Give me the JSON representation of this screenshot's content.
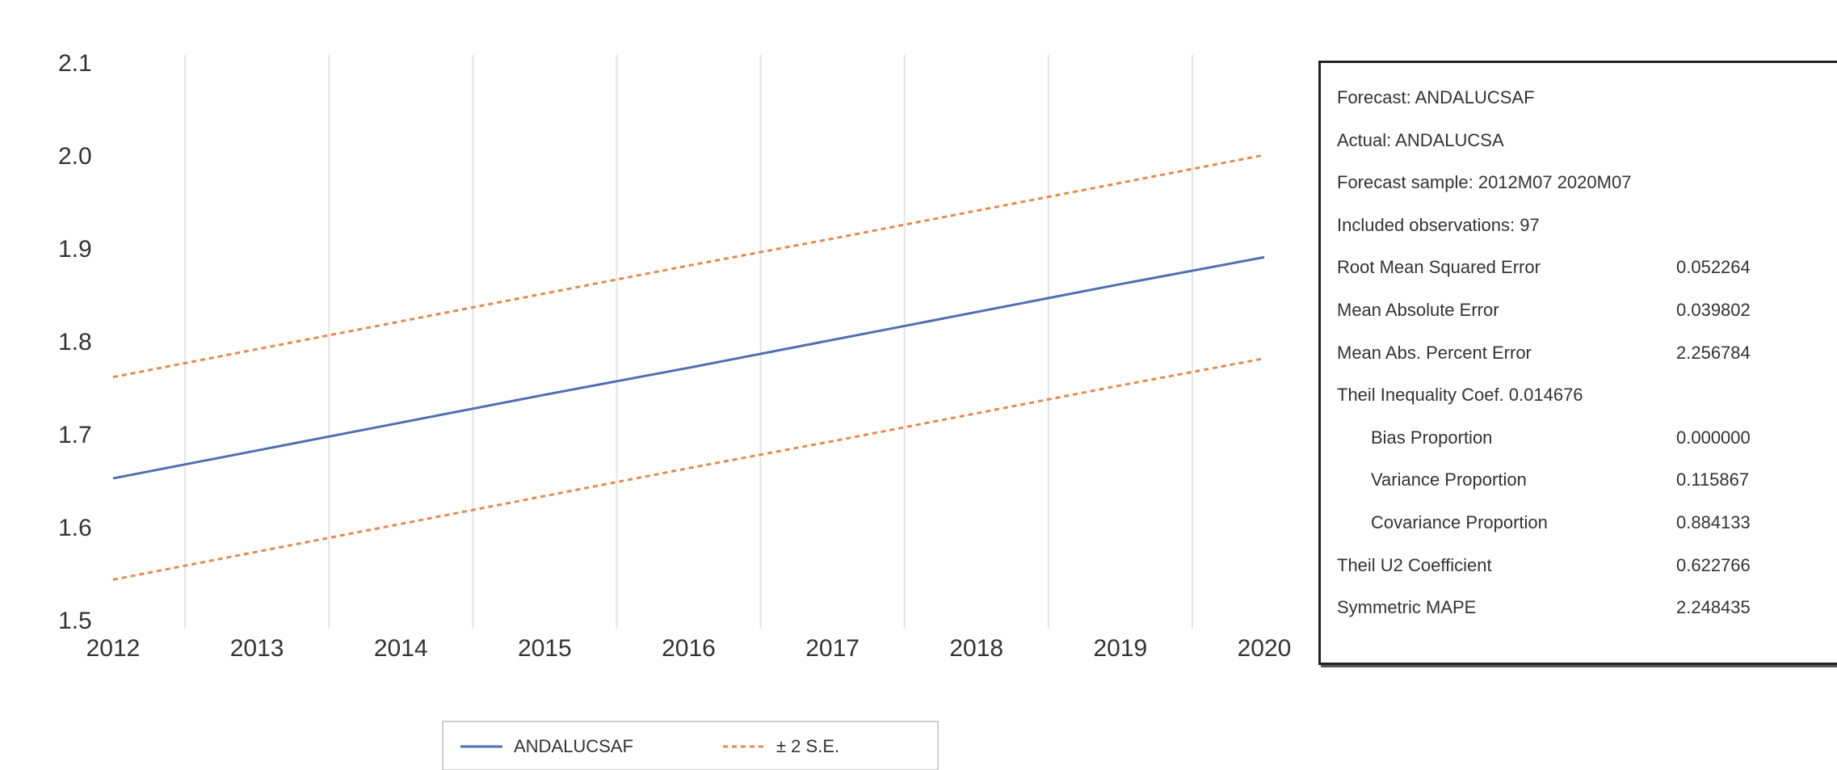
{
  "chart_data": {
    "type": "line",
    "x": [
      2012,
      2013,
      2014,
      2015,
      2016,
      2017,
      2018,
      2019,
      2020
    ],
    "xlim": [
      2012,
      2020
    ],
    "ylim": [
      1.5,
      2.1
    ],
    "yticks": [
      "1.5",
      "1.6",
      "1.7",
      "1.8",
      "1.9",
      "2.0",
      "2.1"
    ],
    "xticks": [
      "2012",
      "2013",
      "2014",
      "2015",
      "2016",
      "2017",
      "2018",
      "2019",
      "2020"
    ],
    "grid": "vertical",
    "series": [
      {
        "name": "ANDALUCSAF",
        "style": "solid",
        "color": "#4f6fb0",
        "x": [
          2012,
          2013,
          2014,
          2015,
          2016,
          2017,
          2018,
          2019,
          2020
        ],
        "values": [
          1.653,
          1.683,
          1.713,
          1.743,
          1.772,
          1.802,
          1.832,
          1.862,
          1.891
        ]
      },
      {
        "name": "± 2 S.E.",
        "style": "dashed",
        "color": "#e8894a",
        "x": [
          2012,
          2013,
          2014,
          2015,
          2016,
          2017,
          2018,
          2019,
          2020
        ],
        "values": [
          1.762,
          1.792,
          1.822,
          1.852,
          1.882,
          1.911,
          1.941,
          1.971,
          2.001
        ]
      },
      {
        "name": "± 2 S.E. (lower)",
        "style": "dashed",
        "color": "#e8894a",
        "legend": false,
        "x": [
          2012,
          2013,
          2014,
          2015,
          2016,
          2017,
          2018,
          2019,
          2020
        ],
        "values": [
          1.544,
          1.574,
          1.604,
          1.634,
          1.664,
          1.693,
          1.723,
          1.753,
          1.782
        ]
      }
    ],
    "legend": {
      "placement": "bottom",
      "items": [
        {
          "label": "ANDALUCSAF",
          "style": "solid",
          "color": "#4f6fb0"
        },
        {
          "label": "± 2 S.E.",
          "style": "dashed",
          "color": "#e8894a"
        }
      ]
    }
  },
  "stats": {
    "rows": [
      {
        "label": "Forecast: ANDALUCSAF",
        "value": "",
        "indent": false
      },
      {
        "label": "Actual: ANDALUCSA",
        "value": "",
        "indent": false
      },
      {
        "label": "Forecast sample: 2012M07 2020M07",
        "value": "",
        "indent": false
      },
      {
        "label": "Included observations: 97",
        "value": "",
        "indent": false
      },
      {
        "label": "Root Mean Squared Error",
        "value": "0.052264",
        "indent": false
      },
      {
        "label": "Mean Absolute Error",
        "value": "0.039802",
        "indent": false
      },
      {
        "label": "Mean Abs. Percent Error",
        "value": "2.256784",
        "indent": false
      },
      {
        "label": "Theil Inequality Coef.   0.014676",
        "value": "",
        "indent": false
      },
      {
        "label": "Bias Proportion",
        "value": "0.000000",
        "indent": true
      },
      {
        "label": "Variance Proportion",
        "value": "0.115867",
        "indent": true
      },
      {
        "label": "Covariance Proportion",
        "value": "0.884133",
        "indent": true
      },
      {
        "label": "Theil U2 Coefficient",
        "value": "0.622766",
        "indent": false
      },
      {
        "label": "Symmetric MAPE",
        "value": "2.248435",
        "indent": false
      }
    ]
  }
}
